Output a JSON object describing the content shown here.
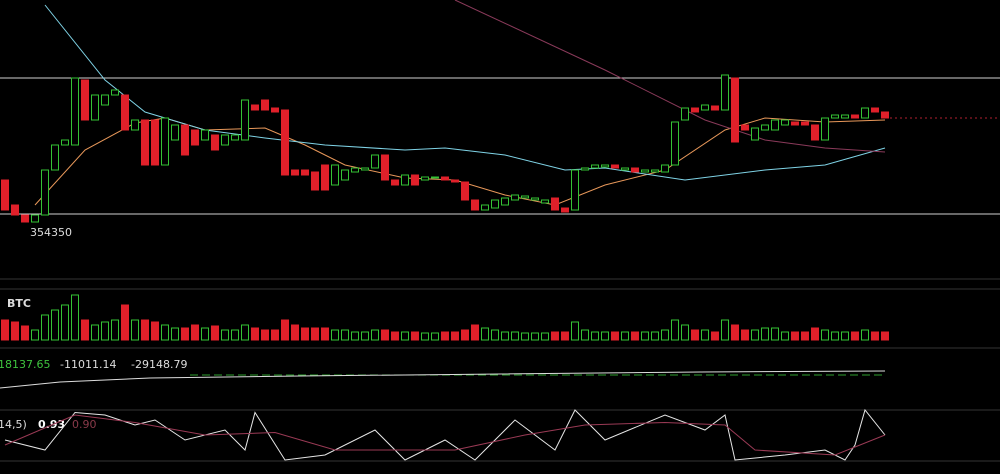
{
  "chart_data": {
    "type": "candlestick",
    "ylim": [
      350550,
      376550
    ],
    "open": [
      358550,
      356050,
      355050,
      354350,
      355050,
      359550,
      362050,
      362050,
      368550,
      364550,
      366050,
      367050,
      367050,
      363550,
      364550,
      364550,
      360050,
      362550,
      364050,
      363550,
      362550,
      363050,
      362050,
      362550,
      362550,
      366050,
      366550,
      365750,
      365550,
      359550,
      359550,
      359350,
      360050,
      358050,
      358550,
      359350,
      359550,
      359750,
      361050,
      358550,
      358050,
      359050,
      358550,
      358750,
      358850,
      358550,
      358350,
      356550,
      355550,
      355750,
      356050,
      356550,
      356750,
      356550,
      356250,
      356750,
      355750,
      355550,
      359550,
      359750,
      359850,
      360050,
      359550,
      359750,
      359350,
      359350,
      359350,
      360050,
      364550,
      365750,
      365550,
      365950,
      365550,
      368750,
      364050,
      362550,
      363550,
      363550,
      364050,
      364350,
      364350,
      364050,
      362550,
      364750,
      364750,
      365050,
      364750,
      365750,
      365350
    ],
    "close": [
      355550,
      355050,
      354350,
      355050,
      359550,
      362050,
      362550,
      368750,
      364550,
      367050,
      367050,
      367550,
      363550,
      364550,
      360050,
      360050,
      364750,
      364050,
      361050,
      362050,
      363550,
      361550,
      363050,
      363050,
      366550,
      365550,
      365550,
      365350,
      359050,
      359050,
      359050,
      357550,
      357550,
      360050,
      359550,
      359750,
      359750,
      361050,
      358550,
      358050,
      359050,
      358050,
      358850,
      358850,
      358550,
      358350,
      356550,
      355550,
      356050,
      356550,
      356750,
      357050,
      356950,
      356750,
      356550,
      355550,
      355350,
      359550,
      359750,
      360050,
      360050,
      359750,
      359750,
      359350,
      359550,
      359550,
      360050,
      364350,
      365750,
      365350,
      366050,
      365550,
      369050,
      362350,
      363550,
      363750,
      364050,
      364550,
      364550,
      364050,
      364050,
      362550,
      364750,
      365050,
      365050,
      364750,
      365750,
      365350,
      364750
    ],
    "up_color": "#34c234",
    "down_color": "#e0202a",
    "low_label": 354350,
    "levels": [
      368750,
      355150
    ],
    "last_price": 364750,
    "moving_averages": [
      {
        "color": "#e8985a",
        "x": [
          3,
          8,
          13,
          16,
          20,
          26,
          30,
          34,
          40,
          45,
          50,
          55,
          60,
          66,
          72,
          76,
          82,
          88
        ],
        "values": [
          356050,
          361550,
          364250,
          364750,
          363550,
          363750,
          362050,
          360050,
          358750,
          358550,
          357050,
          356050,
          358050,
          359550,
          363550,
          364750,
          364350,
          364550
        ]
      },
      {
        "color": "#7fd3e6",
        "x": [
          4,
          10,
          14,
          20,
          26,
          32,
          40,
          44,
          50,
          56,
          60,
          68,
          76,
          82,
          88
        ],
        "values": [
          376050,
          368550,
          365350,
          363550,
          362750,
          362050,
          361550,
          361750,
          361050,
          359550,
          359750,
          358550,
          359550,
          360050,
          361750
        ]
      },
      {
        "color": "#8a3a5a",
        "x": [
          45,
          60,
          70,
          76,
          82,
          88
        ],
        "values": [
          376550,
          369550,
          364550,
          362550,
          361750,
          361350
        ]
      }
    ],
    "volume_label": "BTC",
    "volume_ylim": [
      0,
      50
    ],
    "volume": [
      20,
      18,
      14,
      10,
      25,
      30,
      35,
      45,
      20,
      15,
      18,
      20,
      35,
      20,
      20,
      18,
      15,
      12,
      12,
      15,
      12,
      14,
      10,
      10,
      15,
      12,
      10,
      10,
      20,
      15,
      12,
      12,
      12,
      10,
      10,
      8,
      8,
      10,
      10,
      8,
      8,
      8,
      7,
      7,
      8,
      8,
      10,
      15,
      12,
      10,
      8,
      8,
      7,
      7,
      7,
      8,
      8,
      18,
      10,
      8,
      8,
      8,
      8,
      8,
      8,
      8,
      10,
      20,
      15,
      10,
      10,
      8,
      20,
      15,
      10,
      10,
      12,
      12,
      8,
      8,
      8,
      12,
      10,
      8,
      8,
      8,
      10,
      8,
      8
    ],
    "macd_values": [
      18137.65,
      -11011.14,
      -29148.79
    ],
    "kdj_label": "14,5)",
    "kdj_values": [
      0.93,
      {
        "value": 0.9,
        "label": "0.90"
      }
    ],
    "kdj_ylim": [
      0,
      100
    ],
    "kdj_series": [
      {
        "color": "#e6e6e6",
        "x": [
          0,
          4,
          7,
          10,
          13,
          15,
          18,
          22,
          24,
          25,
          28,
          32,
          37,
          40,
          44,
          47,
          51,
          55,
          57,
          60,
          66,
          70,
          72,
          73,
          78,
          82,
          84,
          85,
          86,
          88
        ],
        "values": [
          40,
          20,
          95,
          90,
          70,
          80,
          40,
          60,
          20,
          95,
          0,
          10,
          60,
          0,
          40,
          0,
          80,
          20,
          100,
          40,
          90,
          60,
          90,
          0,
          10,
          20,
          0,
          30,
          100,
          50
        ]
      },
      {
        "color": "#9a3a55",
        "x": [
          0,
          7,
          13,
          20,
          27,
          33,
          45,
          52,
          58,
          66,
          72,
          75,
          83,
          88
        ],
        "values": [
          30,
          90,
          75,
          50,
          55,
          20,
          20,
          50,
          70,
          75,
          70,
          20,
          10,
          50
        ]
      }
    ]
  }
}
